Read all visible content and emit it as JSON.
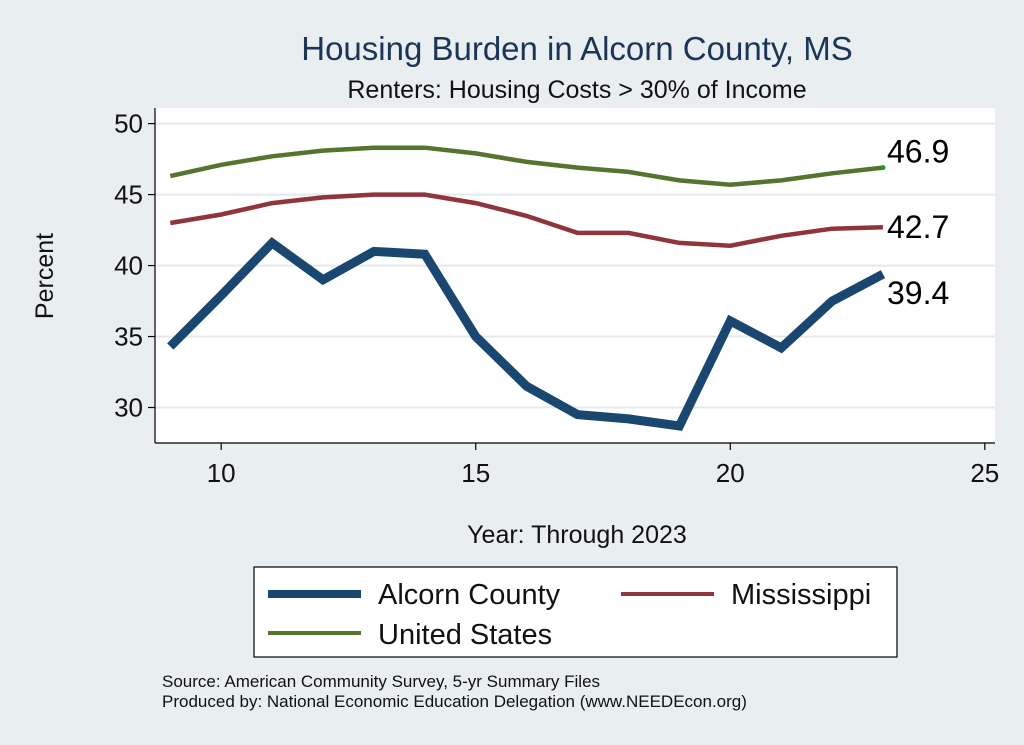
{
  "chart_data": {
    "type": "line",
    "title": "Housing Burden in Alcorn County, MS",
    "subtitle": "Renters: Housing Costs > 30% of Income",
    "xlabel": "Year: Through 2023",
    "ylabel": "Percent",
    "xlim": [
      8.7,
      25.2
    ],
    "ylim": [
      27.5,
      51.1
    ],
    "xticks": [
      10,
      15,
      20,
      25
    ],
    "yticks": [
      30,
      35,
      40,
      45,
      50
    ],
    "grid": true,
    "x": [
      9,
      10,
      11,
      12,
      13,
      14,
      15,
      16,
      17,
      18,
      19,
      20,
      21,
      22,
      23
    ],
    "series": [
      {
        "key": "alcorn",
        "name": "Alcorn County",
        "color": "#1a476f",
        "values": [
          34.3,
          37.9,
          41.6,
          39.0,
          41.0,
          40.8,
          35.0,
          31.5,
          29.5,
          29.2,
          28.7,
          36.1,
          34.2,
          37.5,
          39.4
        ],
        "end_label": "39.4"
      },
      {
        "key": "mississippi",
        "name": "Mississippi",
        "color": "#90353b",
        "values": [
          43.0,
          43.6,
          44.4,
          44.8,
          45.0,
          45.0,
          44.4,
          43.5,
          42.3,
          42.3,
          41.6,
          41.4,
          42.1,
          42.6,
          42.7
        ],
        "end_label": "42.7"
      },
      {
        "key": "us",
        "name": "United States",
        "color": "#55752f",
        "values": [
          46.3,
          47.1,
          47.7,
          48.1,
          48.3,
          48.3,
          47.9,
          47.3,
          46.9,
          46.6,
          46.0,
          45.7,
          46.0,
          46.5,
          46.9
        ],
        "end_label": "46.9"
      }
    ],
    "legend": {
      "placement": "bottom",
      "entries": [
        "Alcorn County",
        "Mississippi",
        "United States"
      ]
    },
    "notes": [
      "Source: American Community Survey, 5-yr Summary Files",
      "Produced by: National Economic Education Delegation (www.NEEDEcon.org)"
    ]
  }
}
